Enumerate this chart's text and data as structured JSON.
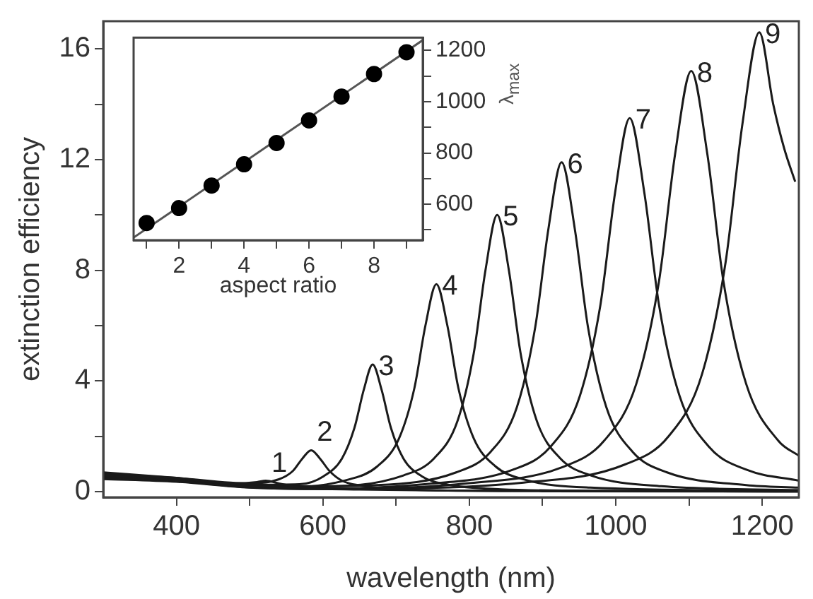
{
  "chart_data": [
    {
      "type": "line",
      "xlabel": "wavelength (nm)",
      "ylabel": "extinction efficiency",
      "xlim": [
        300,
        1250
      ],
      "ylim": [
        -0.2,
        17
      ],
      "xticks": [
        400,
        {
          "value": 500,
          "label": null
        },
        600,
        {
          "value": 700,
          "label": null
        },
        800,
        {
          "value": 900,
          "label": null
        },
        1000,
        {
          "value": 1100,
          "label": null
        },
        1200
      ],
      "yticks": [
        0,
        {
          "value": 2,
          "label": null
        },
        4,
        {
          "value": 6,
          "label": null
        },
        8,
        {
          "value": 10,
          "label": null
        },
        12,
        {
          "value": 14,
          "label": null
        },
        16
      ],
      "grid": false,
      "legend": false,
      "marker": "none",
      "line_style": "solid",
      "series": [
        {
          "name": "1",
          "color": "#1a1a1a",
          "x": [
            300,
            400,
            480,
            510,
            522,
            540,
            570,
            650,
            800,
            1250
          ],
          "values": [
            0.7,
            0.5,
            0.3,
            0.35,
            0.4,
            0.3,
            0.15,
            0.08,
            0.04,
            0.01
          ]
        },
        {
          "name": "2",
          "color": "#1a1a1a",
          "x": [
            300,
            400,
            500,
            540,
            559,
            572,
            584,
            596,
            609,
            626,
            652,
            684,
            760,
            900,
            1250
          ],
          "values": [
            0.65,
            0.5,
            0.3,
            0.45,
            0.75,
            1.2,
            1.5,
            1.2,
            0.75,
            0.4,
            0.22,
            0.12,
            0.05,
            0.02,
            0.01
          ]
        },
        {
          "name": "3",
          "color": "#1a1a1a",
          "x": [
            300,
            400,
            500,
            568,
            601,
            626,
            643,
            656,
            668,
            680,
            693,
            710,
            735,
            768,
            843,
            1000,
            1250
          ],
          "values": [
            0.6,
            0.48,
            0.25,
            0.27,
            0.56,
            1.2,
            2.3,
            3.7,
            4.6,
            3.7,
            2.3,
            1.2,
            0.56,
            0.27,
            0.09,
            0.03,
            0.01
          ]
        },
        {
          "name": "4",
          "color": "#1a1a1a",
          "x": [
            300,
            400,
            500,
            545,
            635,
            674,
            704,
            725,
            740,
            755,
            770,
            785,
            806,
            836,
            875,
            965,
            1250
          ],
          "values": [
            0.58,
            0.46,
            0.22,
            0.15,
            0.44,
            0.91,
            1.93,
            3.75,
            6.0,
            7.5,
            6.0,
            3.75,
            1.93,
            0.91,
            0.44,
            0.15,
            0.03
          ]
        },
        {
          "name": "5",
          "color": "#1a1a1a",
          "x": [
            300,
            400,
            500,
            614,
            710,
            752,
            784,
            806,
            822,
            838,
            854,
            870,
            892,
            924,
            966,
            1062,
            1250
          ],
          "values": [
            0.55,
            0.44,
            0.2,
            0.2,
            0.59,
            1.21,
            2.57,
            5.0,
            8.0,
            10.0,
            8.0,
            5.0,
            2.57,
            1.21,
            0.59,
            0.2,
            0.06
          ]
        },
        {
          "name": "6",
          "color": "#1a1a1a",
          "x": [
            300,
            400,
            500,
            674,
            782,
            829,
            865,
            890,
            908,
            926,
            944,
            962,
            987,
            1023,
            1070,
            1178,
            1250
          ],
          "values": [
            0.52,
            0.42,
            0.18,
            0.24,
            0.7,
            1.44,
            3.06,
            5.95,
            9.5,
            11.9,
            9.5,
            5.95,
            3.06,
            1.44,
            0.7,
            0.24,
            0.15
          ]
        },
        {
          "name": "7",
          "color": "#1a1a1a",
          "x": [
            300,
            400,
            500,
            600,
            739,
            859,
            911,
            951,
            979,
            999,
            1019,
            1039,
            1059,
            1087,
            1127,
            1179,
            1250
          ],
          "values": [
            0.5,
            0.4,
            0.17,
            0.12,
            0.27,
            0.79,
            1.63,
            3.47,
            6.75,
            10.8,
            13.5,
            10.8,
            6.75,
            3.47,
            1.63,
            0.79,
            0.4
          ]
        },
        {
          "name": "8",
          "color": "#1a1a1a",
          "x": [
            300,
            400,
            500,
            600,
            795,
            927,
            984,
            1028,
            1059,
            1081,
            1103,
            1125,
            1147,
            1178,
            1222,
            1250
          ],
          "values": [
            0.48,
            0.38,
            0.16,
            0.1,
            0.3,
            0.89,
            1.84,
            3.9,
            7.6,
            12.2,
            15.2,
            12.2,
            7.6,
            3.9,
            1.84,
            1.3
          ]
        },
        {
          "name": "9",
          "color": "#1a1a1a",
          "x": [
            300,
            400,
            500,
            600,
            874,
            1012,
            1072,
            1118,
            1150,
            1173,
            1196,
            1215,
            1230,
            1245
          ],
          "values": [
            0.46,
            0.36,
            0.15,
            0.1,
            0.33,
            0.98,
            2.0,
            4.27,
            8.3,
            13.3,
            16.6,
            14.0,
            12.4,
            11.2
          ]
        }
      ]
    },
    {
      "type": "scatter",
      "xlabel": "aspect ratio",
      "ylabel": "λ$_{max}$",
      "xlim": [
        0.6,
        9.5
      ],
      "ylim": [
        460,
        1250
      ],
      "xticks": [
        {
          "value": 1,
          "label": null
        },
        2,
        {
          "value": 3,
          "label": null
        },
        4,
        {
          "value": 5,
          "label": null
        },
        6,
        {
          "value": 7,
          "label": null
        },
        8,
        {
          "value": 9,
          "label": null
        }
      ],
      "yticks": [
        {
          "value": 500,
          "label": null
        },
        600,
        {
          "value": 700,
          "label": null
        },
        800,
        {
          "value": 900,
          "label": null
        },
        1000,
        {
          "value": 1100,
          "label": null
        },
        1200
      ],
      "grid": false,
      "legend": false,
      "series": [
        {
          "color": "#000000",
          "marker": "circle",
          "x": [
            1,
            2,
            3,
            4,
            5,
            6,
            7,
            8,
            9
          ],
          "values": [
            527,
            585,
            673,
            756,
            839,
            927,
            1020,
            1108,
            1193
          ]
        },
        {
          "type": "line",
          "color": "#555555",
          "marker": "none",
          "x": [
            0.6,
            9.5
          ],
          "values": [
            470,
            1240
          ]
        }
      ]
    }
  ]
}
